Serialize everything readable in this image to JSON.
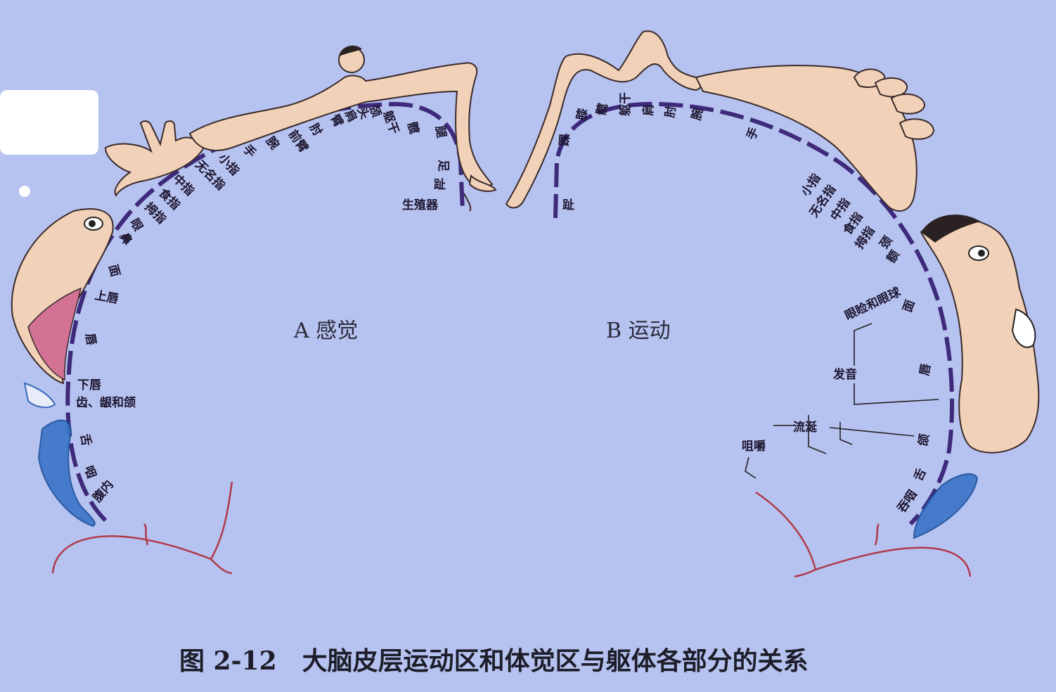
{
  "caption": "图 2-12　大脑皮层运动区和体觉区与躯体各部分的关系",
  "panel_a": {
    "title": "A 感觉",
    "labels": {
      "genitals": "生殖器",
      "toes": "趾",
      "foot": "足",
      "leg": "腿",
      "hip": "髋",
      "trunk": "躯干",
      "neck": "颈",
      "head": "头",
      "shoulder": "肩",
      "arm": "臂",
      "elbow": "肘",
      "forearm": "前臂",
      "wrist": "腕",
      "hand": "手",
      "little": "小指",
      "ring": "无名指",
      "middle": "中指",
      "index": "食指",
      "thumb": "拇指",
      "eye": "眼",
      "nose": "鼻",
      "face": "面",
      "upper_lip": "上唇",
      "lips": "唇",
      "lower_lip": "下唇",
      "teeth": "齿、龈和颌",
      "tongue": "舌",
      "pharynx": "咽",
      "abdominal": "腹内"
    }
  },
  "panel_b": {
    "title": "B 运动",
    "labels": {
      "toes": "趾",
      "ankle": "踝",
      "knee": "膝",
      "hip": "髋",
      "trunk": "躯干",
      "shoulder": "肩",
      "elbow": "肘",
      "wrist": "腕",
      "hand": "手",
      "little": "小指",
      "ring": "无名指",
      "middle": "中指",
      "index": "食指",
      "thumb": "拇指",
      "neck": "颈",
      "brow": "额",
      "eyelid": "眼睑和眼球",
      "face": "面",
      "vocal": "发音",
      "lips": "唇",
      "saliva": "流涎",
      "jaw": "颌",
      "chew": "咀嚼",
      "tongue": "舌",
      "swallow": "吞咽"
    }
  }
}
